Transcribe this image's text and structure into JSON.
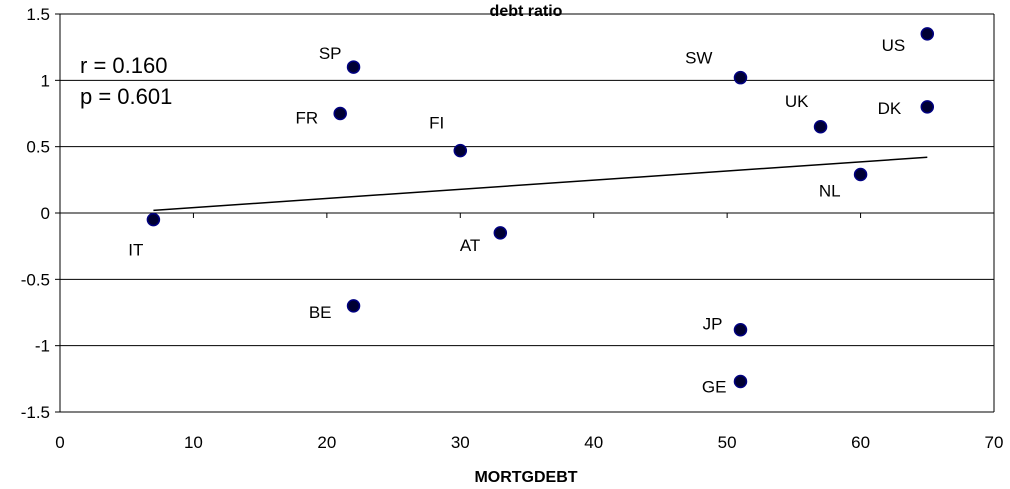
{
  "chart_data": {
    "type": "scatter",
    "title": "debt ratio",
    "xlabel": "MORTGDEBT",
    "ylabel": "",
    "xlim": [
      0,
      70
    ],
    "ylim": [
      -1.5,
      1.5
    ],
    "x_ticks": [
      "0",
      "10",
      "20",
      "30",
      "40",
      "50",
      "60",
      "70"
    ],
    "y_ticks": [
      "1.5",
      "1",
      "0.5",
      "0",
      "-0.5",
      "-1",
      "-1.5"
    ],
    "grid": "horizontal",
    "annotations": {
      "r": "r = 0.160",
      "p": "p = 0.601"
    },
    "points": [
      {
        "label": "IT",
        "x": 7,
        "y": -0.05
      },
      {
        "label": "SP",
        "x": 22,
        "y": 1.1
      },
      {
        "label": "FR",
        "x": 21,
        "y": 0.75
      },
      {
        "label": "FI",
        "x": 30,
        "y": 0.47
      },
      {
        "label": "AT",
        "x": 33,
        "y": -0.15
      },
      {
        "label": "BE",
        "x": 22,
        "y": -0.7
      },
      {
        "label": "SW",
        "x": 51,
        "y": 1.02
      },
      {
        "label": "JP",
        "x": 51,
        "y": -0.88
      },
      {
        "label": "GE",
        "x": 51,
        "y": -1.27
      },
      {
        "label": "UK",
        "x": 57,
        "y": 0.65
      },
      {
        "label": "NL",
        "x": 60,
        "y": 0.29
      },
      {
        "label": "US",
        "x": 65,
        "y": 1.35
      },
      {
        "label": "DK",
        "x": 65,
        "y": 0.8
      }
    ],
    "trendline": {
      "x": [
        7,
        65
      ],
      "y": [
        0.02,
        0.42
      ]
    }
  }
}
